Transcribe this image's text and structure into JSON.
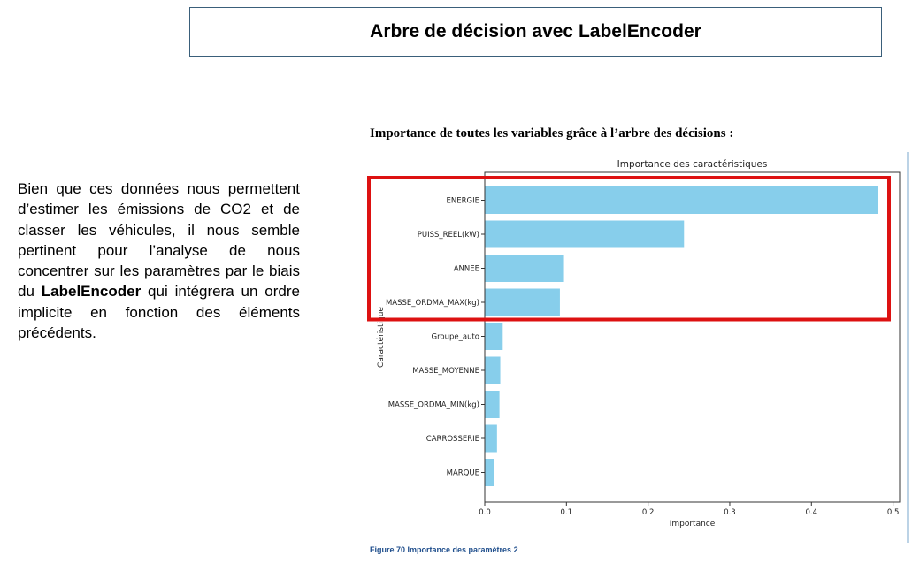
{
  "slide": {
    "title": "Arbre de décision avec LabelEncoder",
    "paragraph_part1": "Bien que ces données nous permettent d’estimer les émissions de CO2 et de classer les véhicules, il nous semble pertinent pour l’analyse de nous concentrer sur les paramètres par le biais du ",
    "paragraph_bold": "LabelEncoder",
    "paragraph_part2": " qui intégrera un ordre implicite en fonction des éléments précédents.",
    "figure_heading": "Importance de toutes les variables grâce à l’arbre des décisions :",
    "figure_caption": "Figure 70 Importance des paramètres 2",
    "highlight_color": "#dd1111"
  },
  "chart_data": {
    "type": "bar",
    "orientation": "horizontal",
    "title": "Importance des caractéristiques",
    "xlabel": "Importance",
    "ylabel": "Caractéristique",
    "categories": [
      "ENERGIE",
      "PUISS_REEL(kW)",
      "ANNEE",
      "MASSE_ORDMA_MAX(kg)",
      "Groupe_auto",
      "MASSE_MOYENNE",
      "MASSE_ORDMA_MIN(kg)",
      "CARROSSERIE",
      "MARQUE"
    ],
    "values": [
      0.482,
      0.244,
      0.097,
      0.092,
      0.022,
      0.019,
      0.018,
      0.015,
      0.011
    ],
    "xlim": [
      0,
      0.508
    ],
    "xticks": [
      0.0,
      0.1,
      0.2,
      0.3,
      0.4,
      0.5
    ],
    "xtick_labels": [
      "0.0",
      "0.1",
      "0.2",
      "0.3",
      "0.4",
      "0.5"
    ],
    "bar_color": "#87ceeb",
    "grid": false,
    "highlighted_categories": [
      "ENERGIE",
      "PUISS_REEL(kW)",
      "ANNEE",
      "MASSE_ORDMA_MAX(kg)"
    ]
  }
}
